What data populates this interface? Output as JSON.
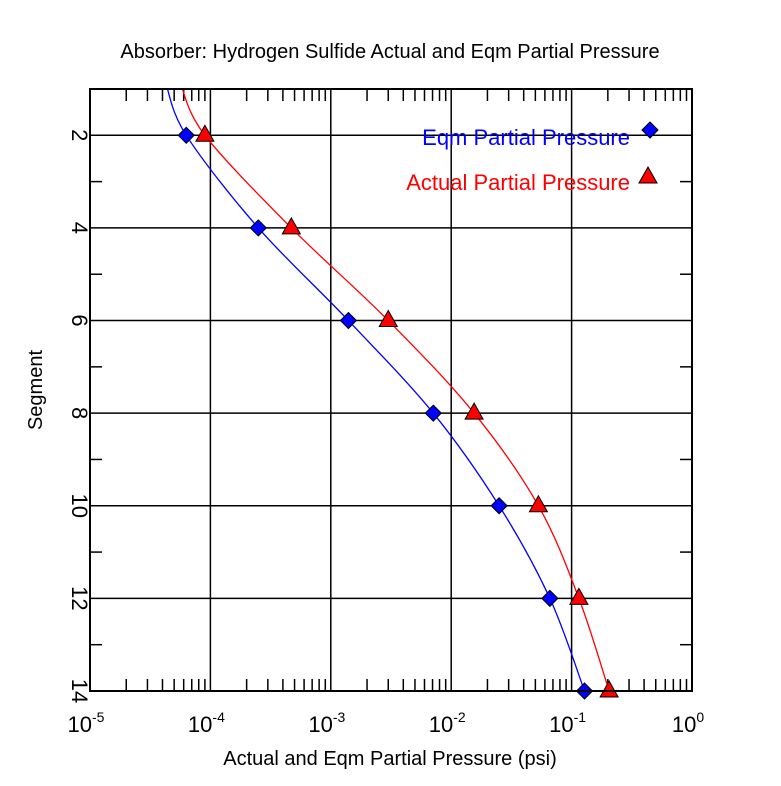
{
  "chart_data": {
    "type": "line",
    "title": "Absorber: Hydrogen Sulfide Actual and Eqm Partial Pressure",
    "xlabel": "Actual and Eqm Partial Pressure (psi)",
    "ylabel": "Segment",
    "xscale": "log",
    "xlim": [
      1e-05,
      1
    ],
    "ylim": [
      1,
      14
    ],
    "y_inverted": true,
    "grid": true,
    "legend_placement": "top-right",
    "x_tick_labels": [
      {
        "base": "10",
        "exp": "-5",
        "value": 1e-05
      },
      {
        "base": "10",
        "exp": "-4",
        "value": 0.0001
      },
      {
        "base": "10",
        "exp": "-3",
        "value": 0.001
      },
      {
        "base": "10",
        "exp": "-2",
        "value": 0.01
      },
      {
        "base": "10",
        "exp": "-1",
        "value": 0.1
      },
      {
        "base": "10",
        "exp": "0",
        "value": 1
      }
    ],
    "y_ticks": [
      "2",
      "4",
      "6",
      "8",
      "10",
      "12",
      "14"
    ],
    "series": [
      {
        "name": "Eqm Partial Pressure",
        "color": "#0000ff",
        "marker": "diamond",
        "y": [
          2,
          4,
          6,
          8,
          10,
          12,
          14
        ],
        "x": [
          6.3e-05,
          0.00025,
          0.0014,
          0.0071,
          0.025,
          0.066,
          0.128
        ]
      },
      {
        "name": "Actual Partial Pressure",
        "color": "#ff0000",
        "marker": "triangle",
        "y": [
          2,
          4,
          6,
          8,
          10,
          12,
          14
        ],
        "x": [
          9e-05,
          0.00047,
          0.003,
          0.0155,
          0.053,
          0.115,
          0.205
        ]
      }
    ]
  }
}
